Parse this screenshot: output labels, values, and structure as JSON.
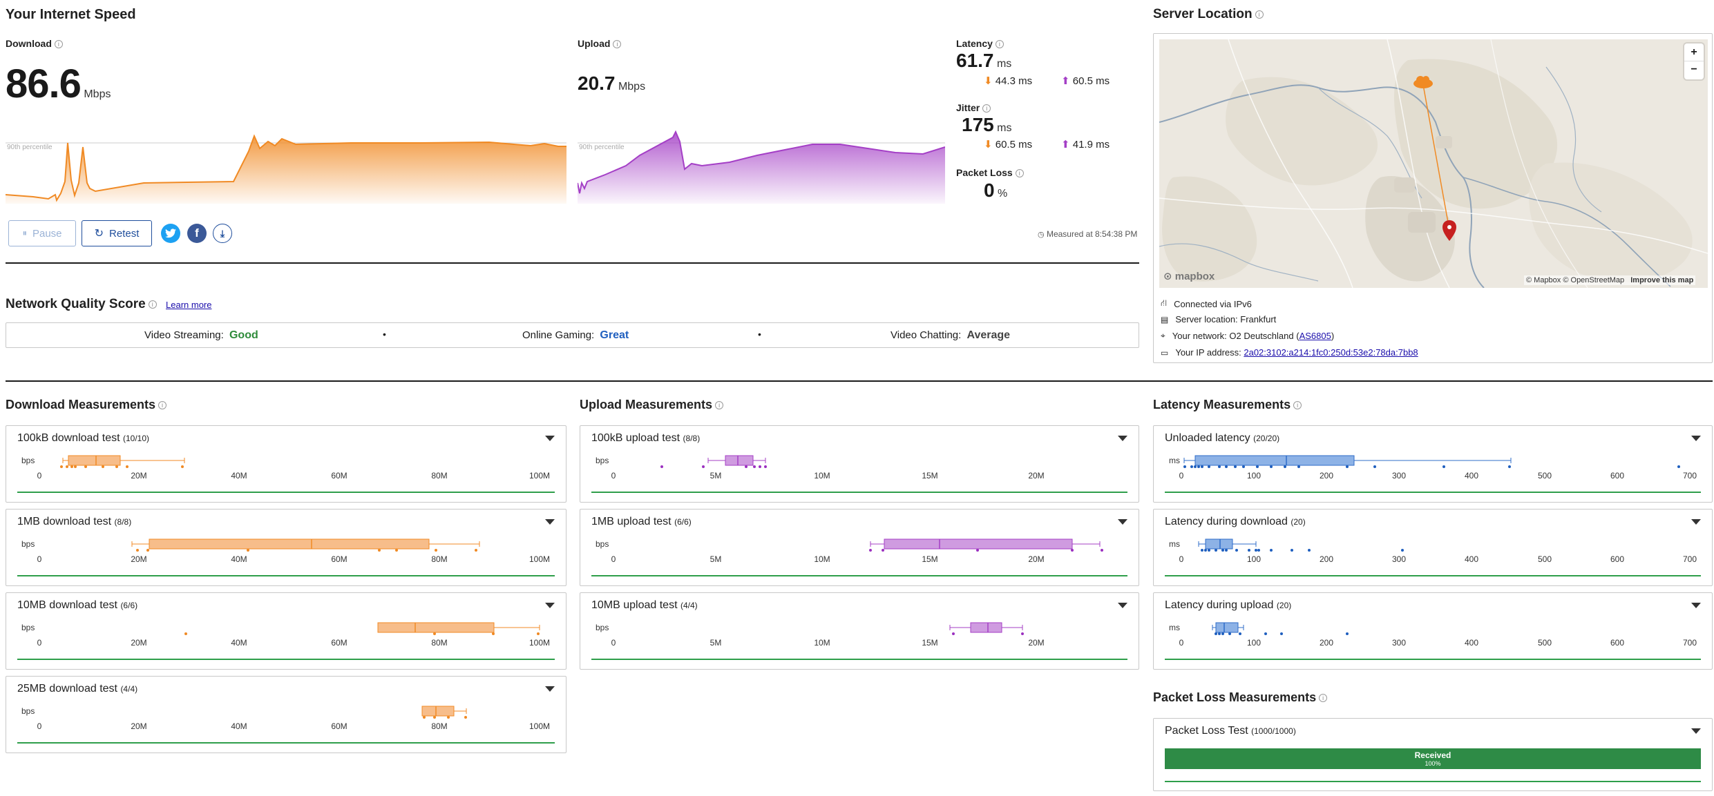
{
  "speed": {
    "title": "Your Internet Speed",
    "download_label": "Download",
    "download_value": "86.6",
    "download_unit": "Mbps",
    "upload_label": "Upload",
    "upload_value": "20.7",
    "upload_unit": "Mbps",
    "percentile_label": "90th percentile",
    "latency_label": "Latency",
    "latency_value": "61.7",
    "latency_unit": "ms",
    "latency_down": "44.3",
    "latency_up": "60.5",
    "jitter_label": "Jitter",
    "jitter_value": "175",
    "jitter_unit": "ms",
    "jitter_down": "60.5",
    "jitter_up": "41.9",
    "sub_unit": "ms",
    "packet_loss_label": "Packet Loss",
    "packet_loss_value": "0",
    "packet_loss_unit": "%",
    "pause_label": "Pause",
    "retest_label": "Retest",
    "measured_at": "Measured at 8:54:38 PM",
    "download_color": "#f08a24",
    "upload_color": "#a43fc6"
  },
  "nqs": {
    "title": "Network Quality Score",
    "learn_more": "Learn more",
    "items": [
      {
        "label": "Video Streaming:",
        "value": "Good",
        "color": "#2e8b3a"
      },
      {
        "label": "Online Gaming:",
        "value": "Great",
        "color": "#1f5fbf"
      },
      {
        "label": "Video Chatting:",
        "value": "Average",
        "color": "#444444"
      }
    ],
    "separator": "•"
  },
  "server": {
    "title": "Server Location",
    "zoom_in": "+",
    "zoom_out": "−",
    "map_attrib": "© Mapbox © OpenStreetMap",
    "improve_map": "Improve this map",
    "mapbox_logo": "mapbox",
    "connected": "Connected via IPv6",
    "server_location": "Server location: Frankfurt",
    "network_prefix": "Your network: O2 Deutschland (",
    "network_as": "AS6805",
    "network_suffix": ")",
    "ip_prefix": "Your IP address: ",
    "ip_value": "2a02:3102:a214:1fc0:250d:53e2:78da:7bb8"
  },
  "download_measurements": {
    "title": "Download Measurements",
    "unit": "bps",
    "ticks": [
      "0",
      "20M",
      "40M",
      "60M",
      "80M",
      "100M"
    ],
    "tests": [
      {
        "name": "100kB download test",
        "count": "(10/10)"
      },
      {
        "name": "1MB download test",
        "count": "(8/8)"
      },
      {
        "name": "10MB download test",
        "count": "(6/6)"
      },
      {
        "name": "25MB download test",
        "count": "(4/4)"
      }
    ]
  },
  "upload_measurements": {
    "title": "Upload Measurements",
    "unit": "bps",
    "ticks": [
      "0",
      "5M",
      "10M",
      "15M",
      "20M"
    ],
    "tests": [
      {
        "name": "100kB upload test",
        "count": "(8/8)"
      },
      {
        "name": "1MB upload test",
        "count": "(6/6)"
      },
      {
        "name": "10MB upload test",
        "count": "(4/4)"
      }
    ]
  },
  "latency_measurements": {
    "title": "Latency Measurements",
    "unit": "ms",
    "ticks": [
      "0",
      "100",
      "200",
      "300",
      "400",
      "500",
      "600",
      "700"
    ],
    "tests": [
      {
        "name": "Unloaded latency",
        "count": "(20/20)"
      },
      {
        "name": "Latency during download",
        "count": "(20)"
      },
      {
        "name": "Latency during upload",
        "count": "(20)"
      }
    ]
  },
  "packet_loss": {
    "title": "Packet Loss Measurements",
    "test_name": "Packet Loss Test",
    "count": "(1000/1000)",
    "received_label": "Received",
    "received_pct": "100%",
    "received_fraction": 1.0
  }
}
